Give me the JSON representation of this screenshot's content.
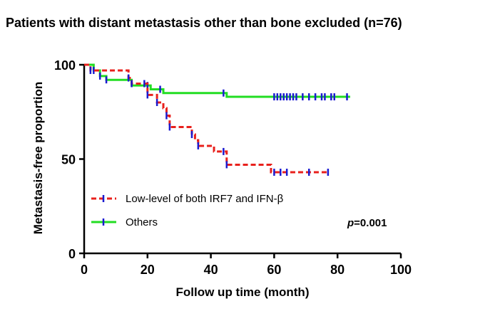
{
  "chart_data": {
    "type": "line",
    "title": "Patients with distant metastasis other than bone excluded (n=76)",
    "xlabel": "Follow up time (month)",
    "ylabel": "Metastasis-free proportion",
    "xlim": [
      0,
      100
    ],
    "ylim": [
      0,
      100
    ],
    "xticks": [
      0,
      20,
      40,
      60,
      80,
      100
    ],
    "yticks": [
      0,
      50,
      100
    ],
    "grid": false,
    "legend_position": "bottom-left",
    "series": [
      {
        "name": "Low-level of both IRF7 and IFN-β",
        "color": "#e8201c",
        "censor_color": "#1a1ad0",
        "line_style": "dashed",
        "steps": [
          [
            0,
            100
          ],
          [
            2,
            97
          ],
          [
            13,
            97
          ],
          [
            14,
            93
          ],
          [
            15,
            90
          ],
          [
            19,
            90
          ],
          [
            20,
            84
          ],
          [
            23,
            80
          ],
          [
            25,
            77
          ],
          [
            26,
            73
          ],
          [
            27,
            67
          ],
          [
            33,
            67
          ],
          [
            34,
            63
          ],
          [
            35,
            60
          ],
          [
            36,
            57
          ],
          [
            40,
            57
          ],
          [
            41,
            54
          ],
          [
            44,
            54
          ],
          [
            45,
            47
          ],
          [
            58,
            47
          ],
          [
            59,
            43
          ],
          [
            77,
            43
          ]
        ],
        "censored": [
          2,
          14,
          15,
          19,
          20,
          23,
          26,
          27,
          34,
          36,
          44,
          45,
          60,
          62,
          64,
          71,
          77
        ]
      },
      {
        "name": "Others",
        "color": "#22dd22",
        "censor_color": "#1a1ad0",
        "line_style": "solid",
        "steps": [
          [
            0,
            100
          ],
          [
            3,
            97
          ],
          [
            5,
            94
          ],
          [
            7,
            92
          ],
          [
            14,
            92
          ],
          [
            15,
            89
          ],
          [
            20,
            89
          ],
          [
            21,
            87
          ],
          [
            24,
            87
          ],
          [
            25,
            85
          ],
          [
            44,
            85
          ],
          [
            45,
            83
          ],
          [
            84,
            83
          ]
        ],
        "censored": [
          3,
          5,
          7,
          20,
          24,
          44,
          60,
          61,
          62,
          63,
          64,
          65,
          66,
          67,
          69,
          71,
          73,
          75,
          76,
          78,
          79,
          83
        ]
      }
    ],
    "annotations": [
      {
        "text_italic": "p",
        "text_rest": "=0.001"
      }
    ]
  }
}
